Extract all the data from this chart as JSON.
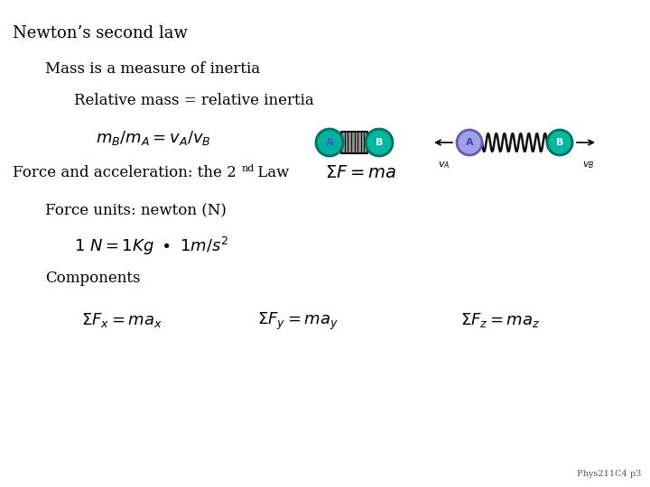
{
  "title": "Newton’s second law",
  "line2": "Mass is a measure of inertia",
  "line3": "Relative mass = relative inertia",
  "footer": "Phys211C4 p3",
  "bg_color": "#ffffff",
  "text_color": "#000000",
  "teal_color": "#00b0a0",
  "circle_A_fill": "#a0a0e8",
  "circle_A_edge": "#6060b0",
  "circle_B_fill": "#00b8a0",
  "circle_B_edge": "#007060",
  "spring_color": "#111111",
  "compressed_fill": "#909090",
  "fs_title": 13,
  "fs_body": 12,
  "fs_math": 12,
  "fs_super": 8,
  "fs_footer": 7,
  "fs_vlabel": 8
}
